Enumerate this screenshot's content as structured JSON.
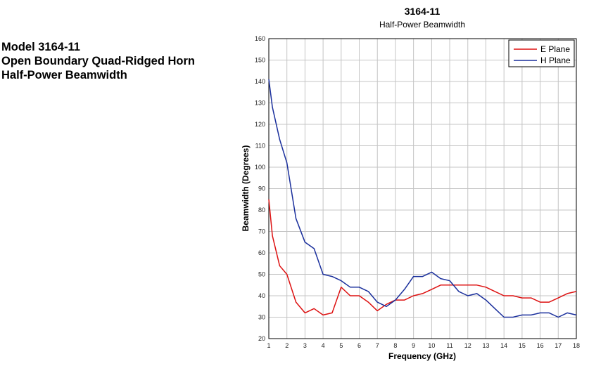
{
  "side_heading": {
    "line1": "Model 3164-11",
    "line2": "Open Boundary Quad-Ridged Horn",
    "line3": "Half-Power Beamwidth"
  },
  "chart_data": {
    "type": "line",
    "title": "3164-11",
    "subtitle": "Half-Power Beamwidth",
    "xlabel": "Frequency (GHz)",
    "ylabel": "Beamwidth (Degrees)",
    "xlim": [
      1,
      18
    ],
    "ylim": [
      20,
      160
    ],
    "xticks": [
      1,
      2,
      3,
      4,
      5,
      6,
      7,
      8,
      9,
      10,
      11,
      12,
      13,
      14,
      15,
      16,
      17,
      18
    ],
    "yticks": [
      20,
      30,
      40,
      50,
      60,
      70,
      80,
      90,
      100,
      110,
      120,
      130,
      140,
      150,
      160
    ],
    "grid": true,
    "legend_position": "top-right",
    "series": [
      {
        "name": "E Plane",
        "color": "#dd1111",
        "x": [
          1,
          1.2,
          1.6,
          2,
          2.5,
          3,
          3.5,
          4,
          4.5,
          5,
          5.5,
          6,
          6.5,
          7,
          7.5,
          8,
          8.5,
          9,
          9.5,
          10,
          10.5,
          11,
          11.5,
          12,
          12.5,
          13,
          13.5,
          14,
          14.5,
          15,
          15.5,
          16,
          16.5,
          17,
          17.5,
          18
        ],
        "y": [
          85,
          68,
          54,
          50,
          37,
          32,
          34,
          31,
          32,
          44,
          40,
          40,
          37,
          33,
          36,
          38,
          38,
          40,
          41,
          43,
          45,
          45,
          45,
          45,
          45,
          44,
          42,
          40,
          40,
          39,
          39,
          37,
          37,
          39,
          41,
          42
        ]
      },
      {
        "name": "H Plane",
        "color": "#1a2f9c",
        "x": [
          1,
          1.2,
          1.6,
          2,
          2.5,
          3,
          3.5,
          4,
          4.5,
          5,
          5.5,
          6,
          6.5,
          7,
          7.5,
          8,
          8.5,
          9,
          9.5,
          10,
          10.5,
          11,
          11.5,
          12,
          12.5,
          13,
          13.5,
          14,
          14.5,
          15,
          15.5,
          16,
          16.5,
          17,
          17.5,
          18
        ],
        "y": [
          141,
          128,
          113,
          102,
          76,
          65,
          62,
          50,
          49,
          47,
          44,
          44,
          42,
          37,
          35,
          38,
          43,
          49,
          49,
          51,
          48,
          47,
          42,
          40,
          41,
          38,
          34,
          30,
          30,
          31,
          31,
          32,
          32,
          30,
          32,
          31
        ]
      }
    ]
  }
}
